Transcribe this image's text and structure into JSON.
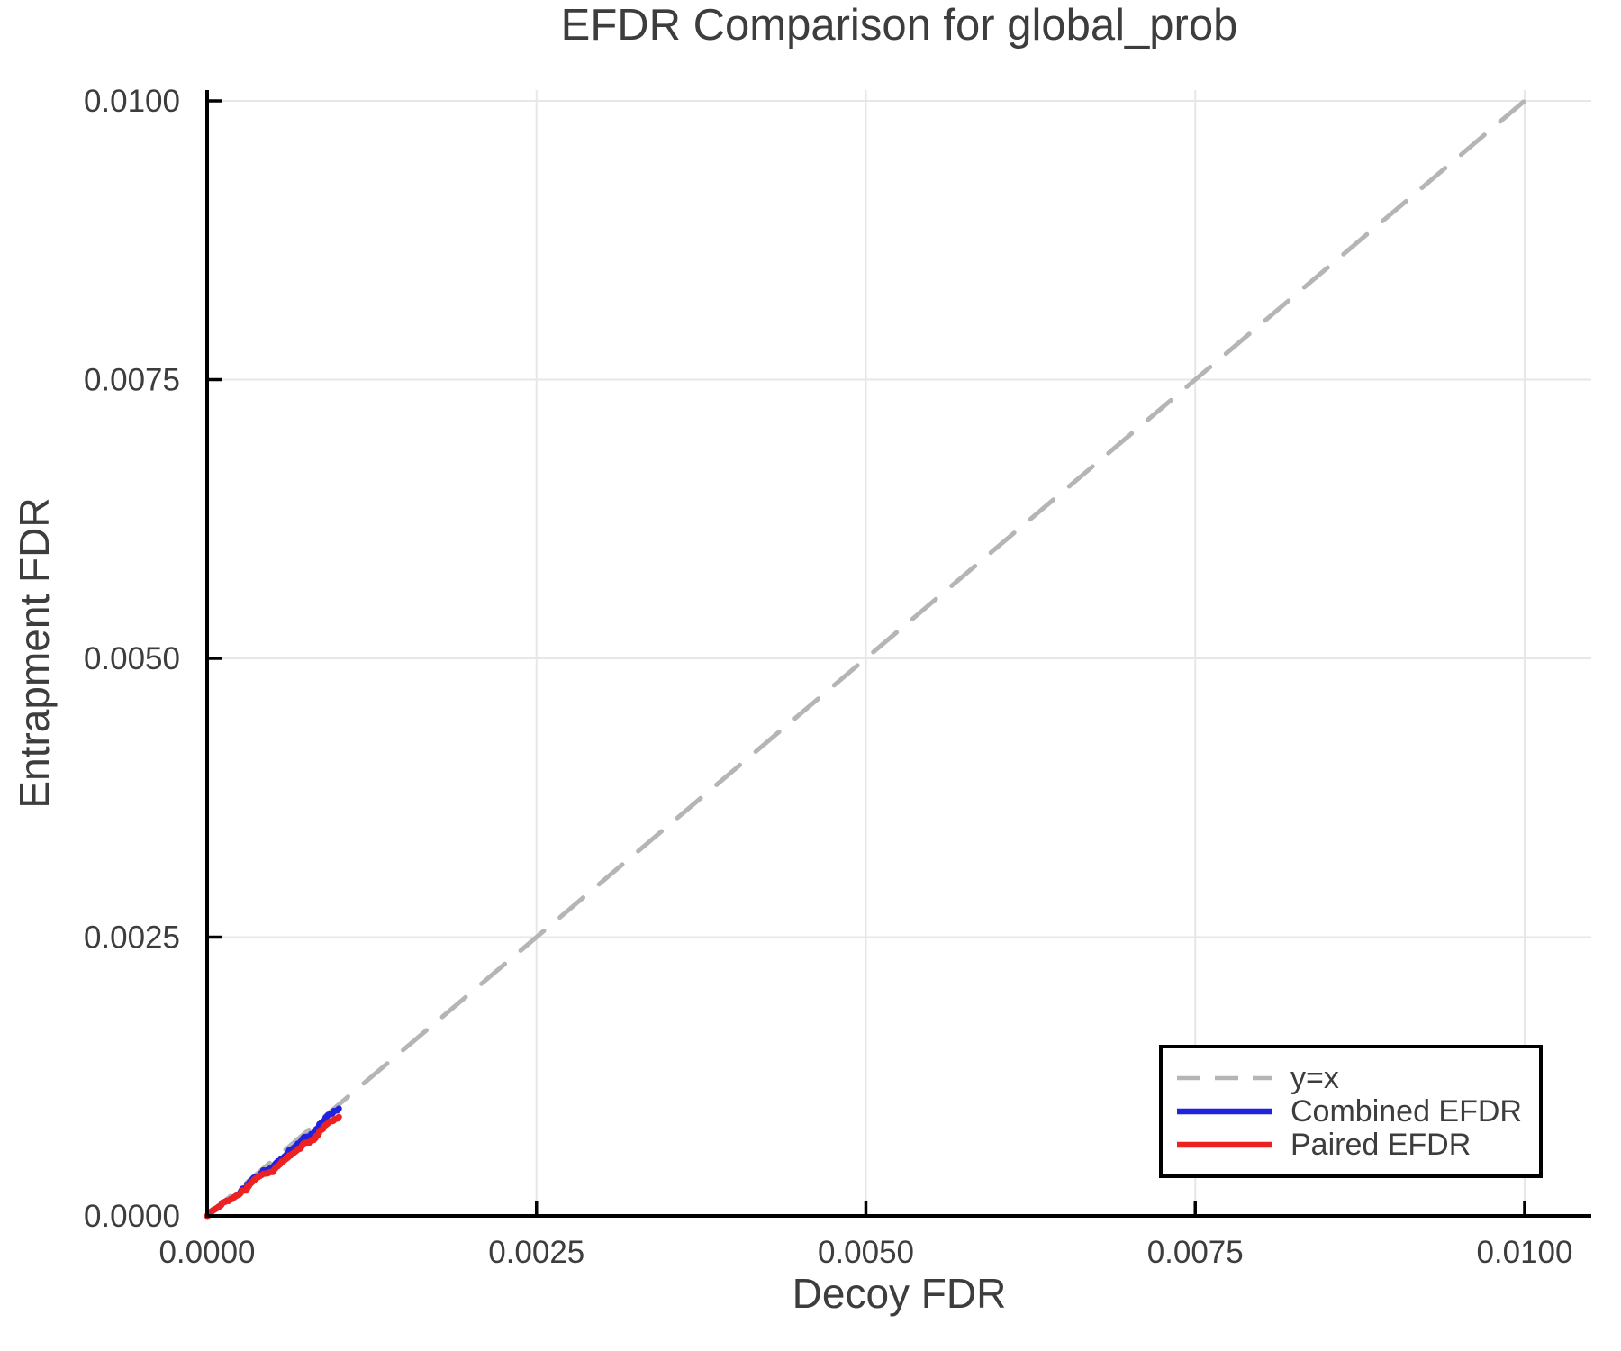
{
  "page": {
    "background": "#ffffff"
  },
  "chart_data": {
    "type": "line",
    "title": "EFDR Comparison for global_prob",
    "xlabel": "Decoy FDR",
    "ylabel": "Entrapment FDR",
    "xlim": [
      0,
      0.010506
    ],
    "ylim": [
      0,
      0.010097
    ],
    "grid": true,
    "legend_position": "bottom-right",
    "colors": {
      "grid": "#e7e7e7",
      "axis": "#000000",
      "text": "#3d3d3d",
      "background": "#ffffff",
      "legend_border": "#000000"
    },
    "xticks": {
      "values": [
        0,
        0.0025,
        0.005,
        0.0075,
        0.01
      ],
      "labels": [
        "0.0000",
        "0.0025",
        "0.0050",
        "0.0075",
        "0.0100"
      ]
    },
    "yticks": {
      "values": [
        0,
        0.0025,
        0.005,
        0.0075,
        0.01
      ],
      "labels": [
        "0.0000",
        "0.0025",
        "0.0050",
        "0.0075",
        "0.0100"
      ]
    },
    "series": [
      {
        "name": "y=x",
        "style": "dashed",
        "color": "#b5b5b5",
        "width": 5,
        "points": [
          [
            0,
            0
          ],
          [
            0.0101,
            0.0101
          ]
        ]
      },
      {
        "name": "Combined EFDR",
        "style": "solid",
        "color": "#2121e0",
        "width": 7,
        "points": [
          [
            0,
            0
          ],
          [
            1e-05,
            5e-06
          ],
          [
            1.4e-05,
            8e-06
          ],
          [
            1.7e-05,
            1.3e-05
          ],
          [
            2.1e-05,
            2e-05
          ],
          [
            2.4e-05,
            2.4e-05
          ],
          [
            2.7e-05,
            3e-05
          ],
          [
            3.1e-05,
            3.5e-05
          ],
          [
            3.5e-05,
            4.3e-05
          ],
          [
            3.9e-05,
            4.4e-05
          ],
          [
            4.2e-05,
            4.7e-05
          ],
          [
            4.6e-05,
            5e-05
          ],
          [
            4.9e-05,
            5.4e-05
          ],
          [
            5.2e-05,
            5.6e-05
          ],
          [
            5.6e-05,
            5.7e-05
          ],
          [
            5.8e-05,
            5.9e-05
          ],
          [
            6.3e-05,
            6.2e-05
          ],
          [
            7e-05,
            6.7e-05
          ],
          [
            7.4e-05,
            7e-05
          ],
          [
            7.9e-05,
            7.4e-05
          ],
          [
            8.3e-05,
            7.7e-05
          ],
          [
            8.8e-05,
            8.2e-05
          ],
          [
            9.3e-05,
            8.4e-05
          ],
          [
            9.9e-05,
            8.9e-05
          ],
          [
            0.000106,
            9.8e-05
          ],
          [
            0.00011,
            0.000105
          ],
          [
            0.000114,
            0.000117
          ],
          [
            0.000121,
            0.00012
          ],
          [
            0.00013,
            0.000124
          ],
          [
            0.000135,
            0.000127
          ],
          [
            0.000144,
            0.000132
          ],
          [
            0.000148,
            0.000135
          ],
          [
            0.000166,
            0.000135
          ],
          [
            0.000173,
            0.000144
          ],
          [
            0.00018,
            0.000151
          ],
          [
            0.000191,
            0.000153
          ],
          [
            0.000198,
            0.000162
          ],
          [
            0.000205,
            0.000167
          ],
          [
            0.000212,
            0.000174
          ],
          [
            0.000223,
            0.000182
          ],
          [
            0.00023,
            0.000186
          ],
          [
            0.000242,
            0.000196
          ],
          [
            0.00025,
            0.000204
          ],
          [
            0.000258,
            0.000222
          ],
          [
            0.000269,
            0.000244
          ],
          [
            0.00029,
            0.000244
          ],
          [
            0.000299,
            0.000258
          ],
          [
            0.000304,
            0.000281
          ],
          [
            0.000314,
            0.000281
          ],
          [
            0.000323,
            0.000303
          ],
          [
            0.000337,
            0.000319
          ],
          [
            0.000344,
            0.000326
          ],
          [
            0.000353,
            0.000342
          ],
          [
            0.000364,
            0.000342
          ],
          [
            0.000371,
            0.000351
          ],
          [
            0.000377,
            0.000354
          ],
          [
            0.000393,
            0.000354
          ],
          [
            0.000403,
            0.000366
          ],
          [
            0.000408,
            0.00038
          ],
          [
            0.000417,
            0.000388
          ],
          [
            0.000424,
            0.000394
          ],
          [
            0.000426,
            0.000408
          ],
          [
            0.000456,
            0.000408
          ],
          [
            0.00046,
            0.00041
          ],
          [
            0.000478,
            0.000426
          ],
          [
            0.000499,
            0.000426
          ],
          [
            0.00051,
            0.000455
          ],
          [
            0.000518,
            0.000466
          ],
          [
            0.000526,
            0.000477
          ],
          [
            0.000536,
            0.00048
          ],
          [
            0.000538,
            0.000491
          ],
          [
            0.000547,
            0.000493
          ],
          [
            0.000554,
            0.000498
          ],
          [
            0.000561,
            0.000511
          ],
          [
            0.000572,
            0.000513
          ],
          [
            0.000579,
            0.000523
          ],
          [
            0.000586,
            0.000531
          ],
          [
            0.000595,
            0.000539
          ],
          [
            0.000599,
            0.000544
          ],
          [
            0.000606,
            0.000555
          ],
          [
            0.000613,
            0.00056
          ],
          [
            0.00062,
            0.000576
          ],
          [
            0.000622,
            0.000588
          ],
          [
            0.000631,
            0.000588
          ],
          [
            0.000638,
            0.000594
          ],
          [
            0.000651,
            0.000603
          ],
          [
            0.000658,
            0.00061
          ],
          [
            0.000668,
            0.00062
          ],
          [
            0.000674,
            0.000626
          ],
          [
            0.000683,
            0.000637
          ],
          [
            0.000688,
            0.000649
          ],
          [
            0.0007,
            0.000649
          ],
          [
            0.000706,
            0.000657
          ],
          [
            0.000713,
            0.00067
          ],
          [
            0.00072,
            0.000681
          ],
          [
            0.000727,
            0.000692
          ],
          [
            0.000731,
            0.0007
          ],
          [
            0.000736,
            0.000707
          ],
          [
            0.000752,
            0.000709
          ],
          [
            0.000781,
            0.000713
          ],
          [
            0.000786,
            0.000717
          ],
          [
            0.00079,
            0.000735
          ],
          [
            0.000809,
            0.000736
          ],
          [
            0.000811,
            0.000743
          ],
          [
            0.00082,
            0.000747
          ],
          [
            0.000822,
            0.000757
          ],
          [
            0.000829,
            0.000778
          ],
          [
            0.000841,
            0.000781
          ],
          [
            0.000843,
            0.000786
          ],
          [
            0.000848,
            0.0008
          ],
          [
            0.000852,
            0.000822
          ],
          [
            0.000861,
            0.000824
          ],
          [
            0.000868,
            0.000838
          ],
          [
            0.000877,
            0.00084
          ],
          [
            0.000887,
            0.000854
          ],
          [
            0.000892,
            0.000855
          ],
          [
            0.000895,
            0.000862
          ],
          [
            0.000897,
            0.000875
          ],
          [
            0.0009,
            0.000882
          ],
          [
            0.000904,
            0.000885
          ],
          [
            0.000911,
            0.000894
          ],
          [
            0.000916,
            0.000902
          ],
          [
            0.000921,
            0.000906
          ],
          [
            0.000925,
            0.000909
          ],
          [
            0.000932,
            0.00091
          ],
          [
            0.000939,
            0.000915
          ],
          [
            0.000943,
            0.000918
          ],
          [
            0.000952,
            0.00092
          ],
          [
            0.000955,
            0.000925
          ],
          [
            0.000962,
            0.000941
          ],
          [
            0.000973,
            0.000943
          ],
          [
            0.000982,
            0.000945
          ],
          [
            0.000989,
            0.000947
          ],
          [
            0.000993,
            0.000951
          ],
          [
            0.000998,
            0.00096
          ],
          [
            0.001,
            0.000962
          ]
        ]
      },
      {
        "name": "Paired EFDR",
        "style": "solid",
        "color": "#ec2121",
        "width": 7,
        "points": [
          [
            0,
            0
          ],
          [
            1e-05,
            5e-06
          ],
          [
            1.4e-05,
            8e-06
          ],
          [
            1.7e-05,
            1.3e-05
          ],
          [
            2.1e-05,
            2e-05
          ],
          [
            2.4e-05,
            2.4e-05
          ],
          [
            2.7e-05,
            3e-05
          ],
          [
            3.1e-05,
            3.5e-05
          ],
          [
            3.5e-05,
            4.3e-05
          ],
          [
            3.9e-05,
            4.4e-05
          ],
          [
            4.2e-05,
            4.7e-05
          ],
          [
            4.6e-05,
            5e-05
          ],
          [
            4.9e-05,
            5.4e-05
          ],
          [
            5.2e-05,
            5.6e-05
          ],
          [
            5.6e-05,
            5.7e-05
          ],
          [
            5.8e-05,
            5.9e-05
          ],
          [
            6.3e-05,
            6.2e-05
          ],
          [
            7e-05,
            6.7e-05
          ],
          [
            7.4e-05,
            7e-05
          ],
          [
            7.9e-05,
            7.4e-05
          ],
          [
            8.3e-05,
            7.7e-05
          ],
          [
            8.8e-05,
            8.3e-05
          ],
          [
            9.3e-05,
            8.6e-05
          ],
          [
            9.9e-05,
            9e-05
          ],
          [
            0.000106,
            9.8e-05
          ],
          [
            0.00011,
            0.000105
          ],
          [
            0.000114,
            0.000117
          ],
          [
            0.000121,
            0.00012
          ],
          [
            0.00013,
            0.000124
          ],
          [
            0.000135,
            0.000127
          ],
          [
            0.000144,
            0.000132
          ],
          [
            0.000148,
            0.000135
          ],
          [
            0.000166,
            0.000135
          ],
          [
            0.000173,
            0.000144
          ],
          [
            0.00018,
            0.000151
          ],
          [
            0.000191,
            0.000153
          ],
          [
            0.000198,
            0.000163
          ],
          [
            0.000205,
            0.000168
          ],
          [
            0.000212,
            0.000174
          ],
          [
            0.000223,
            0.000182
          ],
          [
            0.00023,
            0.000185
          ],
          [
            0.000242,
            0.000191
          ],
          [
            0.000252,
            0.000202
          ],
          [
            0.00026,
            0.000215
          ],
          [
            0.000266,
            0.000228
          ],
          [
            0.000298,
            0.000228
          ],
          [
            0.000303,
            0.00024
          ],
          [
            0.000305,
            0.000266
          ],
          [
            0.000316,
            0.000266
          ],
          [
            0.000323,
            0.000283
          ],
          [
            0.00033,
            0.00029
          ],
          [
            0.000337,
            0.000297
          ],
          [
            0.000344,
            0.000305
          ],
          [
            0.000353,
            0.000315
          ],
          [
            0.000356,
            0.000325
          ],
          [
            0.000363,
            0.000325
          ],
          [
            0.000371,
            0.000337
          ],
          [
            0.000377,
            0.000341
          ],
          [
            0.00039,
            0.000349
          ],
          [
            0.000393,
            0.000357
          ],
          [
            0.000401,
            0.000357
          ],
          [
            0.000408,
            0.000365
          ],
          [
            0.000417,
            0.000368
          ],
          [
            0.000424,
            0.000377
          ],
          [
            0.000426,
            0.000378
          ],
          [
            0.00046,
            0.000381
          ],
          [
            0.00048,
            0.000394
          ],
          [
            0.0005,
            0.000394
          ],
          [
            0.00051,
            0.000417
          ],
          [
            0.00052,
            0.00043
          ],
          [
            0.000526,
            0.000442
          ],
          [
            0.000536,
            0.000444
          ],
          [
            0.000542,
            0.000455
          ],
          [
            0.000552,
            0.000462
          ],
          [
            0.000556,
            0.000468
          ],
          [
            0.000563,
            0.000477
          ],
          [
            0.000565,
            0.000486
          ],
          [
            0.000574,
            0.000486
          ],
          [
            0.000581,
            0.000493
          ],
          [
            0.000595,
            0.000507
          ],
          [
            0.000601,
            0.000513
          ],
          [
            0.00061,
            0.00052
          ],
          [
            0.000615,
            0.000525
          ],
          [
            0.000617,
            0.000533
          ],
          [
            0.000622,
            0.000543
          ],
          [
            0.000636,
            0.000543
          ],
          [
            0.00064,
            0.000552
          ],
          [
            0.000654,
            0.000563
          ],
          [
            0.00066,
            0.000567
          ],
          [
            0.000668,
            0.000576
          ],
          [
            0.000674,
            0.00058
          ],
          [
            0.000683,
            0.00059
          ],
          [
            0.00069,
            0.000596
          ],
          [
            0.000692,
            0.000602
          ],
          [
            0.000706,
            0.000602
          ],
          [
            0.000709,
            0.000606
          ],
          [
            0.000715,
            0.000619
          ],
          [
            0.000722,
            0.000634
          ],
          [
            0.000729,
            0.000646
          ],
          [
            0.000736,
            0.000652
          ],
          [
            0.00074,
            0.000656
          ],
          [
            0.000781,
            0.000658
          ],
          [
            0.000786,
            0.000665
          ],
          [
            0.00079,
            0.000679
          ],
          [
            0.000809,
            0.00068
          ],
          [
            0.000811,
            0.000687
          ],
          [
            0.000822,
            0.000697
          ],
          [
            0.000829,
            0.000719
          ],
          [
            0.000839,
            0.000721
          ],
          [
            0.000843,
            0.000727
          ],
          [
            0.000848,
            0.000741
          ],
          [
            0.000852,
            0.00076
          ],
          [
            0.000863,
            0.000771
          ],
          [
            0.00087,
            0.000773
          ],
          [
            0.00088,
            0.000781
          ],
          [
            0.000884,
            0.000797
          ],
          [
            0.000889,
            0.000805
          ],
          [
            0.000895,
            0.000813
          ],
          [
            0.000902,
            0.000817
          ],
          [
            0.000909,
            0.000824
          ],
          [
            0.000913,
            0.000826
          ],
          [
            0.000921,
            0.000834
          ],
          [
            0.000925,
            0.000839
          ],
          [
            0.00093,
            0.000843
          ],
          [
            0.000934,
            0.000848
          ],
          [
            0.000952,
            0.00085
          ],
          [
            0.000957,
            0.000852
          ],
          [
            0.000962,
            0.000856
          ],
          [
            0.000966,
            0.000868
          ],
          [
            0.000973,
            0.00087
          ],
          [
            0.000982,
            0.000872
          ],
          [
            0.000993,
            0.000874
          ],
          [
            0.000995,
            0.00088
          ],
          [
            0.000998,
            0.000887
          ],
          [
            0.001,
            0.000888
          ]
        ]
      }
    ]
  }
}
